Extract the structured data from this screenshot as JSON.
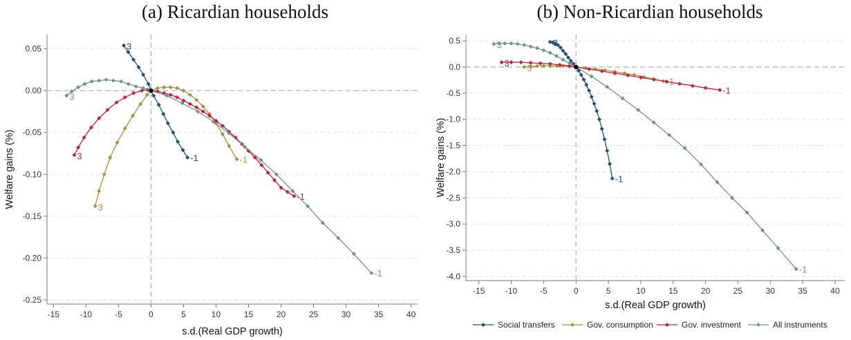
{
  "colors": {
    "social": "#1f4e79",
    "consumption": "#a89040",
    "investment": "#c41e3a",
    "all": "#6f9486"
  },
  "legend": [
    {
      "key": "social",
      "label": "Social transfers"
    },
    {
      "key": "consumption",
      "label": "Gov. consumption"
    },
    {
      "key": "investment",
      "label": "Gov. investment"
    },
    {
      "key": "all",
      "label": "All instruments"
    }
  ],
  "chart_data": [
    {
      "type": "line",
      "title": "(a) Ricardian households",
      "xlabel": "s.d.(Real GDP growth)",
      "ylabel": "Welfare gains (%)",
      "xlim": [
        -16,
        41
      ],
      "ylim": [
        -0.255,
        0.067
      ],
      "xticks": [
        -15,
        -10,
        -5,
        0,
        5,
        10,
        15,
        20,
        25,
        30,
        35,
        40
      ],
      "yticks": [
        0.05,
        0.0,
        -0.05,
        -0.1,
        -0.15,
        -0.2,
        -0.25
      ],
      "ytick_labels": [
        "0.05",
        "0.00",
        "-0.05",
        "-0.10",
        "-0.15",
        "-0.20",
        "-0.25"
      ],
      "grid": "horizontal dashed",
      "reference_lines": {
        "x": 0,
        "y": 0
      },
      "series": [
        {
          "key": "social",
          "start_label": "3",
          "end_label": "-1",
          "x": [
            -4.2,
            -3.5,
            -2.7,
            -1.9,
            -1.2,
            -0.4,
            0.0,
            0.4,
            1.2,
            1.9,
            2.6,
            3.4,
            4.1,
            4.9,
            5.6
          ],
          "y": [
            0.054,
            0.046,
            0.037,
            0.028,
            0.019,
            0.008,
            0.0,
            -0.006,
            -0.017,
            -0.028,
            -0.039,
            -0.05,
            -0.061,
            -0.071,
            -0.08
          ]
        },
        {
          "key": "consumption",
          "start_label": "3",
          "end_label": "-1",
          "x": [
            -8.6,
            -8.0,
            -7.2,
            -6.3,
            -5.2,
            -4.0,
            -2.8,
            -1.6,
            -0.6,
            0.0,
            1.0,
            2.0,
            3.0,
            4.0,
            5.0,
            6.0,
            7.0,
            8.0,
            9.0,
            10.0,
            11.0,
            12.0,
            13.2
          ],
          "y": [
            -0.138,
            -0.12,
            -0.1,
            -0.08,
            -0.062,
            -0.045,
            -0.03,
            -0.016,
            -0.005,
            0.0,
            0.003,
            0.004,
            0.004,
            0.003,
            0.0,
            -0.005,
            -0.011,
            -0.019,
            -0.028,
            -0.039,
            -0.052,
            -0.066,
            -0.082
          ]
        },
        {
          "key": "investment",
          "start_label": "3",
          "end_label": "-1",
          "x": [
            -11.8,
            -11.2,
            -10.3,
            -9.2,
            -8.0,
            -6.7,
            -5.3,
            -4.0,
            -2.7,
            -1.4,
            -0.5,
            0.0,
            1.0,
            2.0,
            3.0,
            4.0,
            5.0,
            6.0,
            7.0,
            8.0,
            9.0,
            10.0,
            11.0,
            12.0,
            13.0,
            14.0,
            15.0,
            16.0,
            17.0,
            18.0,
            19.0,
            20.0,
            21.0,
            22.0
          ],
          "y": [
            -0.077,
            -0.068,
            -0.056,
            -0.044,
            -0.033,
            -0.023,
            -0.014,
            -0.008,
            -0.003,
            0.0,
            0.001,
            0.0,
            -0.001,
            -0.003,
            -0.005,
            -0.008,
            -0.012,
            -0.016,
            -0.02,
            -0.025,
            -0.03,
            -0.036,
            -0.042,
            -0.049,
            -0.056,
            -0.064,
            -0.072,
            -0.08,
            -0.089,
            -0.098,
            -0.107,
            -0.116,
            -0.121,
            -0.126
          ]
        },
        {
          "key": "all",
          "start_label": "3",
          "end_label": "-1",
          "x": [
            -13.0,
            -12.2,
            -11.2,
            -10.2,
            -9.1,
            -8.0,
            -6.9,
            -5.8,
            -4.6,
            -3.5,
            -2.3,
            -1.2,
            0.0,
            2.4,
            4.8,
            7.2,
            9.6,
            12.0,
            14.4,
            16.9,
            19.3,
            21.8,
            24.1,
            26.4,
            28.8,
            31.2,
            33.9
          ],
          "y": [
            -0.006,
            -0.001,
            0.004,
            0.008,
            0.011,
            0.012,
            0.013,
            0.012,
            0.011,
            0.008,
            0.005,
            0.003,
            0.0,
            -0.006,
            -0.015,
            -0.025,
            -0.037,
            -0.051,
            -0.067,
            -0.083,
            -0.1,
            -0.12,
            -0.138,
            -0.158,
            -0.176,
            -0.195,
            -0.218
          ]
        }
      ]
    },
    {
      "type": "line",
      "title": "(b) Non-Ricardian households",
      "xlabel": "s.d.(Real GDP growth)",
      "ylabel": "Welfare gains (%)",
      "xlim": [
        -17,
        41.5
      ],
      "ylim": [
        -4.08,
        0.62
      ],
      "xticks": [
        -15,
        -10,
        -5,
        0,
        5,
        10,
        15,
        20,
        25,
        30,
        35,
        40
      ],
      "yticks": [
        0.5,
        0.0,
        -0.5,
        -1.0,
        -1.5,
        -2.0,
        -2.5,
        -3.0,
        -3.5,
        -4.0
      ],
      "ytick_labels": [
        "0.5",
        "0.0",
        "-0.5",
        "-1.0",
        "-1.5",
        "-2.0",
        "-2.5",
        "-3.0",
        "-3.5",
        "-4.0"
      ],
      "grid": "horizontal dashed",
      "reference_lines": {
        "x": 0,
        "y": 0
      },
      "series": [
        {
          "key": "social",
          "start_label": "3",
          "end_label": "-1",
          "x": [
            -4.0,
            -3.6,
            -3.2,
            -2.8,
            -2.4,
            -2.0,
            -1.6,
            -1.2,
            -0.8,
            -0.4,
            0.0,
            0.4,
            0.8,
            1.2,
            1.6,
            2.0,
            2.4,
            2.8,
            3.2,
            3.6,
            4.0,
            4.4,
            4.8,
            5.2,
            5.6
          ],
          "y": [
            0.48,
            0.47,
            0.45,
            0.42,
            0.37,
            0.31,
            0.25,
            0.18,
            0.12,
            0.06,
            0.0,
            -0.07,
            -0.15,
            -0.24,
            -0.34,
            -0.45,
            -0.57,
            -0.7,
            -0.84,
            -1.0,
            -1.18,
            -1.38,
            -1.6,
            -1.85,
            -2.13
          ]
        },
        {
          "key": "consumption",
          "start_label": "3",
          "end_label": "-1",
          "x": [
            -8.0,
            -7.0,
            -6.0,
            -5.0,
            -4.0,
            -3.0,
            -2.0,
            -1.0,
            0.0,
            1.5,
            3.0,
            4.5,
            6.0,
            7.5,
            9.0,
            10.5,
            12.0,
            13.5
          ],
          "y": [
            0.0,
            0.01,
            0.02,
            0.02,
            0.02,
            0.02,
            0.02,
            0.01,
            0.0,
            -0.02,
            -0.04,
            -0.06,
            -0.09,
            -0.12,
            -0.15,
            -0.19,
            -0.23,
            -0.27
          ]
        },
        {
          "key": "investment",
          "start_label": "3",
          "end_label": "-1",
          "x": [
            -11.5,
            -10.0,
            -8.5,
            -7.0,
            -5.5,
            -4.0,
            -2.5,
            -1.0,
            0.0,
            2.0,
            4.0,
            6.0,
            8.0,
            10.0,
            12.0,
            14.0,
            16.0,
            18.0,
            20.0,
            22.2
          ],
          "y": [
            0.09,
            0.09,
            0.09,
            0.08,
            0.07,
            0.06,
            0.04,
            0.02,
            0.0,
            -0.04,
            -0.08,
            -0.12,
            -0.16,
            -0.2,
            -0.24,
            -0.28,
            -0.32,
            -0.36,
            -0.4,
            -0.44
          ]
        },
        {
          "key": "all",
          "start_label": "3",
          "end_label": "-1",
          "x": [
            -12.7,
            -11.9,
            -11.0,
            -10.0,
            -9.0,
            -8.0,
            -7.0,
            -6.0,
            -5.0,
            -4.0,
            -3.0,
            -2.0,
            -1.0,
            0.0,
            2.4,
            4.8,
            7.2,
            9.6,
            12.0,
            14.4,
            16.8,
            19.3,
            21.8,
            24.1,
            26.4,
            28.8,
            31.2,
            34.0
          ],
          "y": [
            0.44,
            0.45,
            0.45,
            0.45,
            0.44,
            0.42,
            0.39,
            0.36,
            0.32,
            0.27,
            0.21,
            0.14,
            0.07,
            0.0,
            -0.18,
            -0.38,
            -0.6,
            -0.82,
            -1.06,
            -1.3,
            -1.55,
            -1.86,
            -2.2,
            -2.5,
            -2.78,
            -3.12,
            -3.46,
            -3.86
          ]
        }
      ]
    }
  ]
}
